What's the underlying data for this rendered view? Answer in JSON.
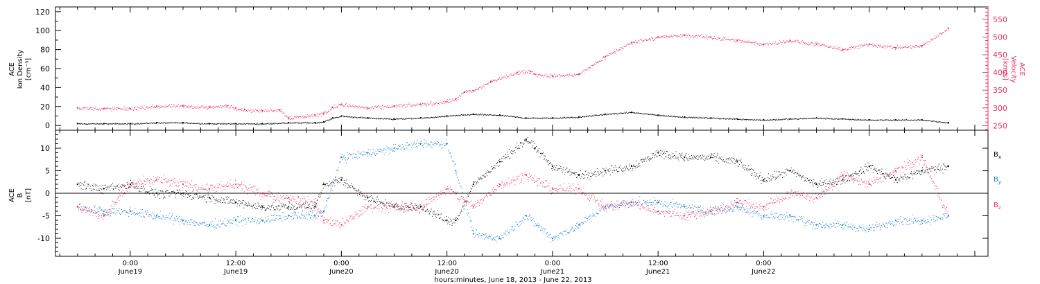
{
  "chart_data": [
    {
      "type": "scatter",
      "panel": "ion-density-velocity",
      "ylabel_left_lines": [
        "ACE",
        "Ion Density",
        "[cm⁻³]"
      ],
      "ylabel_right_lines": [
        "ACE",
        "Velocity",
        "[km/s]"
      ],
      "ylim_left": [
        -5,
        125
      ],
      "yticks_left": [
        0,
        20,
        40,
        60,
        80,
        100,
        120
      ],
      "ylim_right": [
        237,
        585
      ],
      "yticks_right": [
        250,
        300,
        350,
        400,
        450,
        500,
        550
      ],
      "colors": {
        "density": "#000000",
        "velocity": "#e83060"
      },
      "series": [
        {
          "axis": "left",
          "color": "#000000",
          "x": [
            -6.0,
            -3.0,
            0.0,
            3.0,
            6.0,
            9.0,
            12.0,
            15.0,
            18.0,
            21.0,
            22.0,
            23.0,
            24.0,
            27.0,
            30.0,
            33.0,
            36.0,
            39.0,
            42.0,
            45.0,
            48.0,
            51.0,
            54.0,
            57.0,
            60.0,
            63.0,
            66.0,
            69.0,
            72.0,
            75.0,
            78.0,
            81.0,
            84.0,
            87.0,
            90.0,
            93.0
          ],
          "y": [
            2,
            2,
            2,
            3,
            3,
            2,
            2,
            2,
            3,
            3,
            4,
            8,
            10,
            8,
            7,
            8,
            10,
            12,
            11,
            8,
            8,
            9,
            12,
            14,
            11,
            9,
            8,
            7,
            6,
            7,
            8,
            7,
            6,
            6,
            6,
            3
          ]
        },
        {
          "axis": "right",
          "color": "#e83060",
          "x": [
            -6.0,
            -3.0,
            0.0,
            3.0,
            6.0,
            9.0,
            11.0,
            12.0,
            13.0,
            15.0,
            17.0,
            18.0,
            21.0,
            22.0,
            23.0,
            24.0,
            27.0,
            30.0,
            33.0,
            36.0,
            37.0,
            38.0,
            39.0,
            41.0,
            44.0,
            45.5,
            46.0,
            48.0,
            51.0,
            54.0,
            57.0,
            60.0,
            63.0,
            66.0,
            69.0,
            72.0,
            75.0,
            78.0,
            81.0,
            84.0,
            87.0,
            90.0,
            93.0
          ],
          "y": [
            300,
            298,
            298,
            305,
            305,
            302,
            306,
            300,
            295,
            292,
            295,
            272,
            280,
            285,
            302,
            310,
            300,
            305,
            310,
            318,
            325,
            345,
            348,
            375,
            400,
            403,
            395,
            390,
            395,
            445,
            485,
            500,
            505,
            500,
            490,
            480,
            490,
            480,
            465,
            480,
            470,
            475,
            525
          ]
        }
      ]
    },
    {
      "type": "scatter",
      "panel": "magnetic-field",
      "ylabel_left_lines": [
        "ACE",
        "B",
        "[nT]"
      ],
      "ylim": [
        -14,
        14
      ],
      "yticks": [
        -10,
        -5,
        0,
        5,
        10
      ],
      "zero_line": true,
      "legend": [
        "Bx",
        "By",
        "Bz"
      ],
      "colors": {
        "Bx": "#000000",
        "By": "#1a7ad6",
        "Bz": "#e83060"
      },
      "series": [
        {
          "name": "Bx",
          "color": "#000000",
          "x": [
            -6.0,
            -3.0,
            0.0,
            3.0,
            6.0,
            9.0,
            12.0,
            15.0,
            18.0,
            21.0,
            22.0,
            24.0,
            27.0,
            30.0,
            33.0,
            36.0,
            37.0,
            39.0,
            42.0,
            45.0,
            46.0,
            48.0,
            51.0,
            54.0,
            57.0,
            60.0,
            63.0,
            66.0,
            69.0,
            72.0,
            75.0,
            78.0,
            81.0,
            84.0,
            87.0,
            90.0,
            93.0
          ],
          "y": [
            2,
            1,
            2,
            0,
            0,
            -1,
            -2,
            -3,
            -3,
            -3,
            2,
            3,
            -1,
            -3,
            -3,
            -6,
            -6,
            2,
            7,
            12,
            10,
            6,
            4,
            5,
            6,
            9,
            8,
            8,
            7,
            3,
            5,
            2,
            3,
            6,
            3,
            5,
            6
          ]
        },
        {
          "name": "By",
          "color": "#1a7ad6",
          "x": [
            -6.0,
            -3.0,
            0.0,
            3.0,
            6.0,
            9.0,
            12.0,
            15.0,
            18.0,
            21.0,
            22.0,
            24.0,
            27.0,
            30.0,
            33.0,
            36.0,
            37.0,
            39.0,
            42.0,
            45.0,
            48.0,
            51.0,
            54.0,
            57.0,
            60.0,
            63.0,
            66.0,
            69.0,
            72.0,
            75.0,
            78.0,
            81.0,
            84.0,
            87.0,
            90.0,
            93.0
          ],
          "y": [
            -3,
            -4,
            -4,
            -5,
            -6,
            -7,
            -6,
            -6,
            -5,
            -5,
            -4,
            8,
            9,
            10,
            11,
            11,
            5,
            -9,
            -10,
            -5,
            -10,
            -7,
            -3,
            -2,
            -2,
            -3,
            -4,
            -3,
            -5,
            -5,
            -7,
            -7,
            -8,
            -6,
            -6,
            -5
          ]
        },
        {
          "name": "Bz",
          "color": "#e83060",
          "x": [
            -6.0,
            -3.0,
            0.0,
            3.0,
            6.0,
            9.0,
            12.0,
            15.0,
            18.0,
            21.0,
            22.0,
            24.0,
            27.0,
            30.0,
            33.0,
            36.0,
            39.0,
            42.0,
            45.0,
            48.0,
            51.0,
            54.0,
            57.0,
            60.0,
            63.0,
            66.0,
            69.0,
            72.0,
            75.0,
            78.0,
            81.0,
            84.0,
            87.0,
            90.0,
            93.0
          ],
          "y": [
            -3,
            -5,
            2,
            3,
            2,
            1,
            2,
            0,
            -1,
            -2,
            -6,
            -7,
            -3,
            -3,
            -3,
            1,
            -3,
            2,
            4,
            1,
            1,
            -3,
            -2,
            -4,
            -5,
            -4,
            -2,
            -3,
            0,
            -1,
            4,
            2,
            5,
            8,
            -5
          ]
        }
      ]
    }
  ],
  "time_axis": {
    "xlim_hours": [
      -8.5,
      97.5
    ],
    "ticks": [
      {
        "hour": 0,
        "time": "0:00",
        "day": "June19"
      },
      {
        "hour": 12,
        "time": "12:00",
        "day": "June19"
      },
      {
        "hour": 24,
        "time": "0:00",
        "day": "June20"
      },
      {
        "hour": 36,
        "time": "12:00",
        "day": "June20"
      },
      {
        "hour": 48,
        "time": "0:00",
        "day": "June21"
      },
      {
        "hour": 60,
        "time": "12:00",
        "day": "June21"
      },
      {
        "hour": 72,
        "time": "0:00",
        "day": "June22"
      }
    ],
    "minor_tick_hours": 2,
    "xlabel": "hours:minutes, June 18, 2013 - June 22, 2013"
  },
  "legend_labels": {
    "Bx": "B",
    "Bx_sub": "x",
    "By": "B",
    "By_sub": "y",
    "Bz": "B",
    "Bz_sub": "z"
  }
}
